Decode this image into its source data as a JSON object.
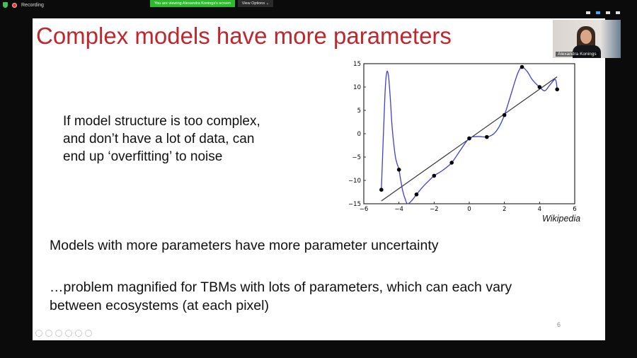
{
  "recording": {
    "label": "Recording"
  },
  "share_banner": {
    "text": "You are viewing Alexandra Konings's screen"
  },
  "view_options": {
    "label": "View Options ⌄"
  },
  "slide": {
    "title": "Complex models have more parameters",
    "body_lines": [
      "If model structure is too complex,",
      "and don’t have a lot of data, can",
      "end up ‘overfitting’ to noise"
    ],
    "models_text": "Models with more parameters have more parameter uncertainty",
    "problem_text": "…problem magnified for TBMs with lots of parameters, which can each vary between ecosystems (at each pixel)",
    "source_label": "Wikipedia",
    "slide_number": "6"
  },
  "participant": {
    "name": "Alexandra Konings"
  },
  "chart_data": {
    "type": "scatter",
    "xlim": [
      -6,
      6
    ],
    "ylim": [
      -15,
      15
    ],
    "xticks": [
      "−6",
      "−4",
      "−2",
      "0",
      "2",
      "4",
      "6"
    ],
    "yticks": [
      "−15",
      "−10",
      "−5",
      "0",
      "5",
      "10",
      "15"
    ],
    "points": [
      {
        "x": -5,
        "y": -12
      },
      {
        "x": -4,
        "y": -7.7
      },
      {
        "x": -3,
        "y": -13
      },
      {
        "x": -2,
        "y": -9
      },
      {
        "x": -1,
        "y": -6.2
      },
      {
        "x": 0,
        "y": -1
      },
      {
        "x": 1,
        "y": -0.7
      },
      {
        "x": 2,
        "y": 4
      },
      {
        "x": 3,
        "y": 14.3
      },
      {
        "x": 4,
        "y": 10
      },
      {
        "x": 5,
        "y": 9.5
      }
    ],
    "linear_fit": {
      "x": [
        -5,
        5
      ],
      "y": [
        -14.4,
        12.2
      ]
    },
    "overfit_curve": {
      "x": [
        -5,
        -4.8,
        -4.7,
        -4.6,
        -4.5,
        -4.4,
        -4.3,
        -4.2,
        -4.1,
        -4,
        -3.8,
        -3.6,
        -3.5,
        -3.4,
        -3.2,
        -3,
        -2.6,
        -2.2,
        -2,
        -1.5,
        -1,
        -0.5,
        0,
        0.5,
        1,
        1.4,
        1.7,
        2,
        2.3,
        2.6,
        2.8,
        3,
        3.3,
        3.6,
        4,
        4.3,
        4.6,
        4.9,
        5
      ],
      "y": [
        -12,
        8,
        13,
        12.5,
        8,
        2,
        -2,
        -5,
        -6.5,
        -7.7,
        -12,
        -14.5,
        -15,
        -14.8,
        -14,
        -13,
        -11.2,
        -9.7,
        -9,
        -7.8,
        -6.2,
        -3.5,
        -1,
        -0.6,
        -0.7,
        0,
        1.5,
        4,
        7.5,
        11.2,
        13.3,
        14.3,
        13.3,
        11.5,
        10,
        9.2,
        10.5,
        11.6,
        9.5
      ]
    },
    "colors": {
      "curve": "#3e3ed9",
      "fit": "#333333",
      "points": "#000000"
    }
  }
}
